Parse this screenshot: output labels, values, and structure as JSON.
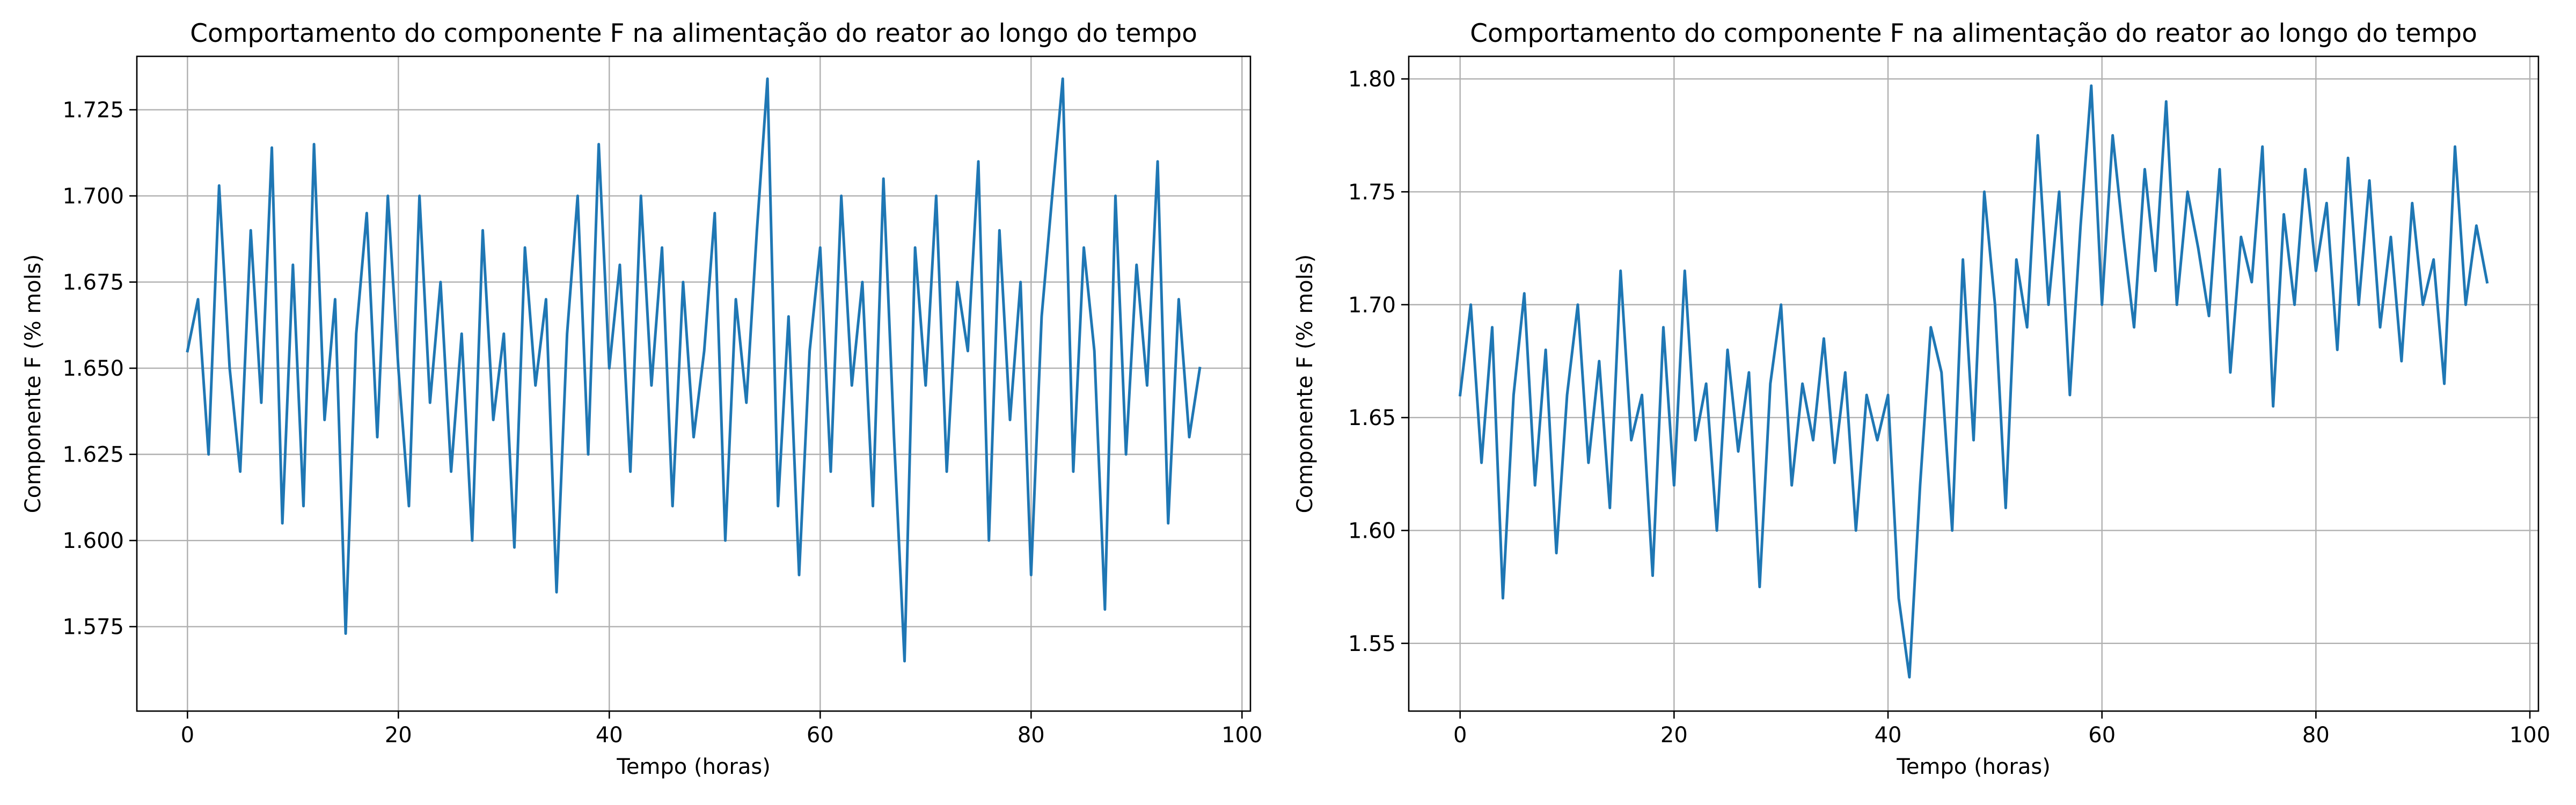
{
  "chart_data": [
    {
      "type": "line",
      "title": "Comportamento do componente F na alimentação do reator ao longo do tempo",
      "xlabel": "Tempo (horas)",
      "ylabel": "Componente F (% mols)",
      "xlim": [
        -4.8,
        100.8
      ],
      "ylim": [
        1.5505,
        1.7405
      ],
      "xticks": [
        0,
        20,
        40,
        60,
        80,
        100
      ],
      "yticks": [
        1.575,
        1.6,
        1.625,
        1.65,
        1.675,
        1.7,
        1.725
      ],
      "xtick_labels": [
        "0",
        "20",
        "40",
        "60",
        "80",
        "100"
      ],
      "ytick_labels": [
        "1.575",
        "1.600",
        "1.625",
        "1.650",
        "1.675",
        "1.700",
        "1.725"
      ],
      "grid": true,
      "color": "#1f77b4",
      "series": [
        {
          "x": [
            0,
            1,
            2,
            3,
            4,
            5,
            6,
            7,
            8,
            9,
            10,
            11,
            12,
            13,
            14,
            15,
            16,
            17,
            18,
            19,
            20,
            21,
            22,
            23,
            24,
            25,
            26,
            27,
            28,
            29,
            30,
            31,
            32,
            33,
            34,
            35,
            36,
            37,
            38,
            39,
            40,
            41,
            42,
            43,
            44,
            45,
            46,
            47,
            48,
            49,
            50,
            51,
            52,
            53,
            54,
            55,
            56,
            57,
            58,
            59,
            60,
            61,
            62,
            63,
            64,
            65,
            66,
            67,
            68,
            69,
            70,
            71,
            72,
            73,
            74,
            75,
            76,
            77,
            78,
            79,
            80,
            81,
            82,
            83,
            84,
            85,
            86,
            87,
            88,
            89,
            90,
            91,
            92,
            93,
            94,
            95,
            96
          ],
          "y": [
            1.655,
            1.67,
            1.625,
            1.703,
            1.65,
            1.62,
            1.69,
            1.64,
            1.714,
            1.605,
            1.68,
            1.61,
            1.715,
            1.635,
            1.67,
            1.573,
            1.66,
            1.695,
            1.63,
            1.7,
            1.65,
            1.61,
            1.7,
            1.64,
            1.675,
            1.62,
            1.66,
            1.6,
            1.69,
            1.635,
            1.66,
            1.598,
            1.685,
            1.645,
            1.67,
            1.585,
            1.66,
            1.7,
            1.625,
            1.715,
            1.65,
            1.68,
            1.62,
            1.7,
            1.645,
            1.685,
            1.61,
            1.675,
            1.63,
            1.655,
            1.695,
            1.6,
            1.67,
            1.64,
            1.69,
            1.734,
            1.61,
            1.665,
            1.59,
            1.655,
            1.685,
            1.62,
            1.7,
            1.645,
            1.675,
            1.61,
            1.705,
            1.63,
            1.565,
            1.685,
            1.645,
            1.7,
            1.62,
            1.675,
            1.655,
            1.71,
            1.6,
            1.69,
            1.635,
            1.675,
            1.59,
            1.665,
            1.7,
            1.734,
            1.62,
            1.685,
            1.655,
            1.58,
            1.7,
            1.625,
            1.68,
            1.645,
            1.71,
            1.605,
            1.67,
            1.63,
            1.65
          ]
        }
      ]
    },
    {
      "type": "line",
      "title": "Comportamento do componente F na alimentação do reator ao longo do tempo",
      "xlabel": "Tempo (horas)",
      "ylabel": "Componente F (% mols)",
      "xlim": [
        -4.8,
        100.8
      ],
      "ylim": [
        1.52,
        1.81
      ],
      "xticks": [
        0,
        20,
        40,
        60,
        80,
        100
      ],
      "yticks": [
        1.55,
        1.6,
        1.65,
        1.7,
        1.75,
        1.8
      ],
      "xtick_labels": [
        "0",
        "20",
        "40",
        "60",
        "80",
        "100"
      ],
      "ytick_labels": [
        "1.55",
        "1.60",
        "1.65",
        "1.70",
        "1.75",
        "1.80"
      ],
      "grid": true,
      "color": "#1f77b4",
      "series": [
        {
          "x": [
            0,
            1,
            2,
            3,
            4,
            5,
            6,
            7,
            8,
            9,
            10,
            11,
            12,
            13,
            14,
            15,
            16,
            17,
            18,
            19,
            20,
            21,
            22,
            23,
            24,
            25,
            26,
            27,
            28,
            29,
            30,
            31,
            32,
            33,
            34,
            35,
            36,
            37,
            38,
            39,
            40,
            41,
            42,
            43,
            44,
            45,
            46,
            47,
            48,
            49,
            50,
            51,
            52,
            53,
            54,
            55,
            56,
            57,
            58,
            59,
            60,
            61,
            62,
            63,
            64,
            65,
            66,
            67,
            68,
            69,
            70,
            71,
            72,
            73,
            74,
            75,
            76,
            77,
            78,
            79,
            80,
            81,
            82,
            83,
            84,
            85,
            86,
            87,
            88,
            89,
            90,
            91,
            92,
            93,
            94,
            95,
            96
          ],
          "y": [
            1.66,
            1.7,
            1.63,
            1.69,
            1.57,
            1.66,
            1.705,
            1.62,
            1.68,
            1.59,
            1.66,
            1.7,
            1.63,
            1.675,
            1.61,
            1.715,
            1.64,
            1.66,
            1.58,
            1.69,
            1.62,
            1.715,
            1.64,
            1.665,
            1.6,
            1.68,
            1.635,
            1.67,
            1.575,
            1.665,
            1.7,
            1.62,
            1.665,
            1.64,
            1.685,
            1.63,
            1.67,
            1.6,
            1.66,
            1.64,
            1.66,
            1.57,
            1.535,
            1.62,
            1.69,
            1.67,
            1.6,
            1.72,
            1.64,
            1.75,
            1.7,
            1.61,
            1.72,
            1.69,
            1.775,
            1.7,
            1.75,
            1.66,
            1.735,
            1.797,
            1.7,
            1.775,
            1.73,
            1.69,
            1.76,
            1.715,
            1.79,
            1.7,
            1.75,
            1.725,
            1.695,
            1.76,
            1.67,
            1.73,
            1.71,
            1.77,
            1.655,
            1.74,
            1.7,
            1.76,
            1.715,
            1.745,
            1.68,
            1.765,
            1.7,
            1.755,
            1.69,
            1.73,
            1.675,
            1.745,
            1.7,
            1.72,
            1.665,
            1.77,
            1.7,
            1.735,
            1.71
          ]
        }
      ]
    }
  ]
}
